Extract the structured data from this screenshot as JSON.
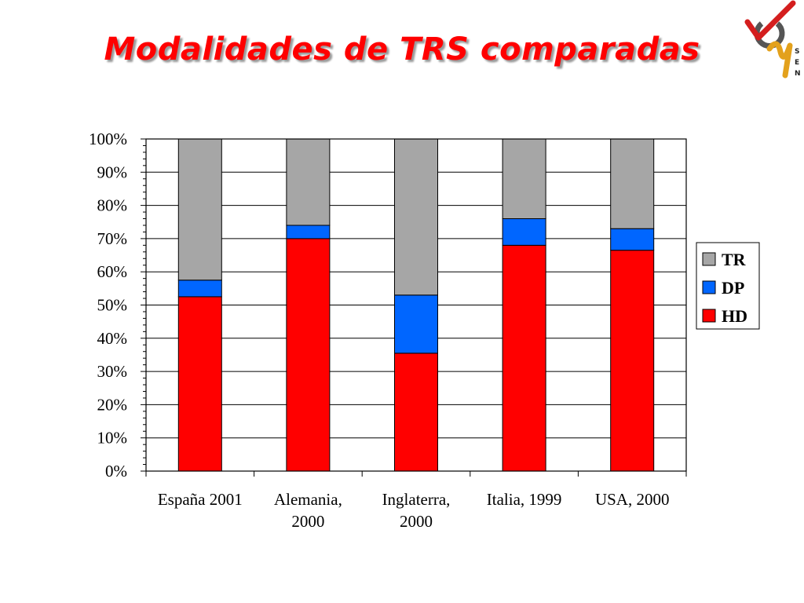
{
  "title": "Modalidades de TRS comparadas",
  "logo": {
    "icon": "sen-logo-icon",
    "letters": [
      "S",
      "E",
      "N"
    ],
    "colors": {
      "check": "#d41e1e",
      "swoosh": "#e3a11c",
      "ring": "#555555"
    }
  },
  "chart_data": {
    "type": "bar",
    "stacked": true,
    "stack_mode": "percent",
    "categories": [
      [
        "España 2001"
      ],
      [
        "Alemania,",
        "2000"
      ],
      [
        "Inglaterra,",
        "2000"
      ],
      [
        "Italia, 1999"
      ],
      [
        "USA, 2000"
      ]
    ],
    "series": [
      {
        "name": "HD",
        "color": "#ff0000",
        "values": [
          52.5,
          70,
          35.5,
          68,
          66.5
        ]
      },
      {
        "name": "DP",
        "color": "#0066ff",
        "values": [
          5,
          4,
          17.5,
          8,
          6.5
        ]
      },
      {
        "name": "TR",
        "color": "#a6a6a6",
        "values": [
          42.5,
          26,
          47,
          24,
          27
        ]
      }
    ],
    "legend_order": [
      "TR",
      "DP",
      "HD"
    ],
    "ylim": [
      0,
      100
    ],
    "yticks": [
      "0%",
      "10%",
      "20%",
      "30%",
      "40%",
      "50%",
      "60%",
      "70%",
      "80%",
      "90%",
      "100%"
    ],
    "grid": true,
    "legend_position": "right",
    "xlabel": "",
    "ylabel": ""
  }
}
